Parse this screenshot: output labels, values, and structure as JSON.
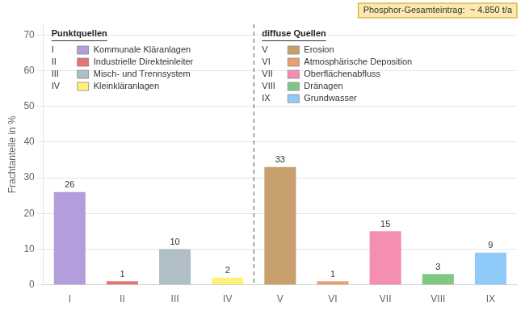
{
  "chart_data": {
    "type": "bar",
    "categories": [
      "I",
      "II",
      "III",
      "IV",
      "V",
      "VI",
      "VII",
      "VIII",
      "IX"
    ],
    "values": [
      26,
      1,
      10,
      2,
      33,
      1,
      15,
      3,
      9
    ],
    "colors": [
      "#b39ddb",
      "#e57373",
      "#b0bec5",
      "#fff176",
      "#c8a06e",
      "#e8a070",
      "#f48fb1",
      "#81c784",
      "#90caf9"
    ],
    "ylabel": "Frachtanteile in %",
    "ylim": [
      0,
      73
    ],
    "yticks": [
      0,
      10,
      20,
      30,
      40,
      50,
      60,
      70
    ],
    "grid": true,
    "data_labels": true,
    "annotations": [
      "Phosphor-Gesamteintrag:  ~ 4.850 t/a"
    ],
    "legend_groups": [
      {
        "title": "Punktquellen",
        "items": [
          {
            "category": "I",
            "name": "Kommunale Kläranlagen"
          },
          {
            "category": "II",
            "name": "Industrielle Direkteinleiter"
          },
          {
            "category": "III",
            "name": "Misch- und Trennsystem"
          },
          {
            "category": "IV",
            "name": "Kleinkläranlagen"
          }
        ]
      },
      {
        "title": "diffuse Quellen",
        "items": [
          {
            "category": "V",
            "name": "Erosion"
          },
          {
            "category": "VI",
            "name": "Atmosphärische Deposition"
          },
          {
            "category": "VII",
            "name": "Oberflächenabfluss"
          },
          {
            "category": "VIII",
            "name": "Dränagen"
          },
          {
            "category": "IX",
            "name": "Grundwasser"
          }
        ]
      }
    ]
  }
}
